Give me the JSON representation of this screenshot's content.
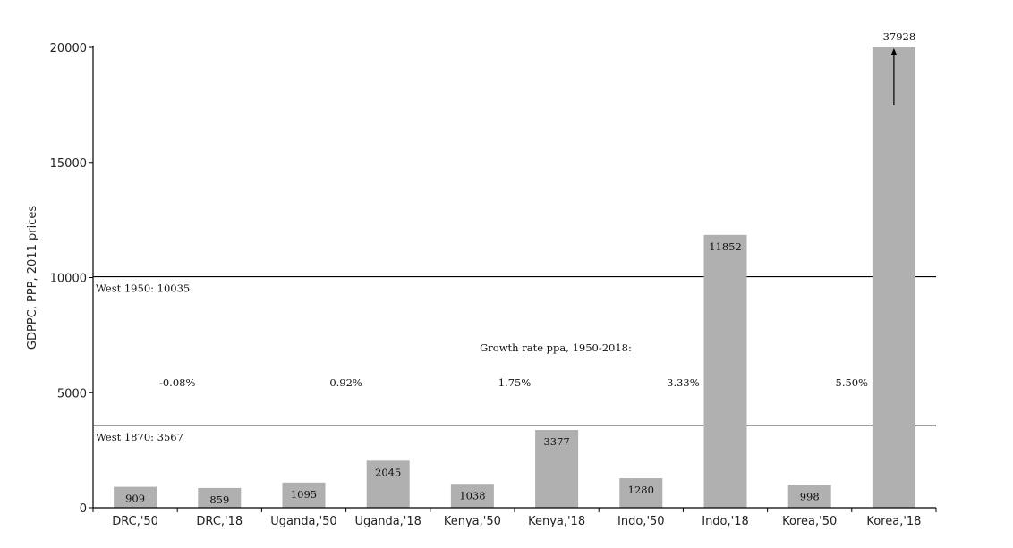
{
  "chart_data": {
    "type": "bar",
    "title": "",
    "xlabel": "",
    "ylabel": "GDPPC, PPP, 2011 prices",
    "ylim": [
      0,
      20000
    ],
    "yticks": [
      0,
      5000,
      10000,
      15000,
      20000
    ],
    "grid": false,
    "categories": [
      "DRC,'50",
      "DRC,'18",
      "Uganda,'50",
      "Uganda,'18",
      "Kenya,'50",
      "Kenya,'18",
      "Indo,'50",
      "Indo,'18",
      "Korea,'50",
      "Korea,'18"
    ],
    "values": [
      909,
      859,
      1095,
      2045,
      1038,
      3377,
      1280,
      11852,
      998,
      37928
    ],
    "value_labels": [
      "909",
      "859",
      "1095",
      "2045",
      "1038",
      "3377",
      "1280",
      "11852",
      "998",
      "37928"
    ],
    "bar_color": "#b0b0b0",
    "reference_lines": [
      {
        "label": "West 1950: 10035",
        "value": 10035
      },
      {
        "label": "West 1870: 3567",
        "value": 3567
      }
    ],
    "annotations": {
      "growth_title": "Growth rate ppa, 1950-2018:",
      "growth_rates": [
        {
          "pair": [
            "DRC,'50",
            "DRC,'18"
          ],
          "label": "-0.08%"
        },
        {
          "pair": [
            "Uganda,'50",
            "Uganda,'18"
          ],
          "label": "0.92%"
        },
        {
          "pair": [
            "Kenya,'50",
            "Kenya,'18"
          ],
          "label": "1.75%"
        },
        {
          "pair": [
            "Indo,'50",
            "Indo,'18"
          ],
          "label": "3.33%"
        },
        {
          "pair": [
            "Korea,'50",
            "Korea,'18"
          ],
          "label": "5.50%"
        }
      ],
      "clipped_bar_arrow": "Korea,'18"
    }
  }
}
